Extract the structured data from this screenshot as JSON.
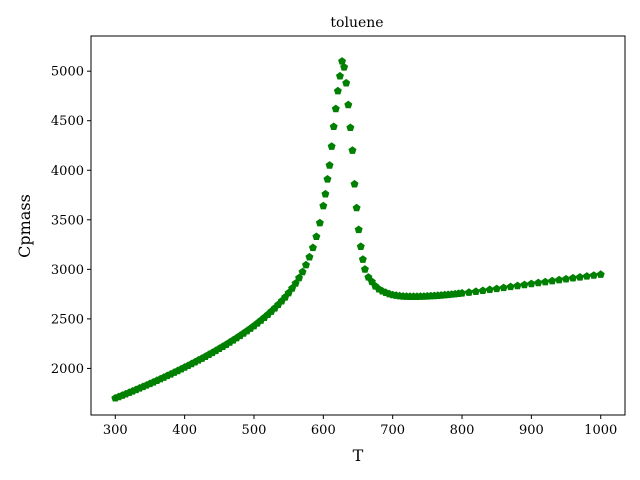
{
  "chart_data": {
    "type": "scatter",
    "title": "toluene",
    "xlabel": "T",
    "ylabel": "Cpmass",
    "xlim": [
      265,
      1035
    ],
    "ylim": [
      1530,
      5355
    ],
    "xticks": [
      300,
      400,
      500,
      600,
      700,
      800,
      900,
      1000
    ],
    "yticks": [
      2000,
      2500,
      3000,
      3500,
      4000,
      4500,
      5000
    ],
    "grid": false,
    "marker": "pentagon",
    "colors": {
      "marker": "#008000"
    },
    "series": [
      {
        "x": [
          300,
          305,
          310,
          315,
          320,
          325,
          330,
          335,
          340,
          345,
          350,
          355,
          360,
          365,
          370,
          375,
          380,
          385,
          390,
          395,
          400,
          405,
          410,
          415,
          420,
          425,
          430,
          435,
          440,
          445,
          450,
          455,
          460,
          465,
          470,
          475,
          480,
          485,
          490,
          495,
          500,
          505,
          510,
          515,
          520,
          525,
          530,
          535,
          540,
          545,
          550,
          555,
          560,
          565,
          570,
          575,
          580,
          585,
          590,
          595,
          600,
          603,
          606,
          609,
          612,
          615,
          618,
          621,
          624,
          627,
          630,
          633,
          636,
          639,
          642,
          645,
          648,
          651,
          654,
          657,
          660,
          665,
          670,
          675,
          680,
          685,
          690,
          695,
          700,
          705,
          710,
          715,
          720,
          725,
          730,
          735,
          740,
          745,
          750,
          755,
          760,
          765,
          770,
          775,
          780,
          785,
          790,
          795,
          800,
          810,
          820,
          830,
          840,
          850,
          860,
          870,
          880,
          890,
          900,
          910,
          920,
          930,
          940,
          950,
          960,
          970,
          980,
          990,
          1000
        ],
        "y": [
          1700,
          1713,
          1727,
          1741,
          1756,
          1770,
          1785,
          1800,
          1815,
          1830,
          1846,
          1861,
          1877,
          1893,
          1909,
          1926,
          1942,
          1959,
          1976,
          1993,
          2011,
          2028,
          2046,
          2064,
          2083,
          2101,
          2120,
          2140,
          2159,
          2179,
          2200,
          2220,
          2241,
          2263,
          2285,
          2307,
          2330,
          2354,
          2378,
          2403,
          2429,
          2456,
          2484,
          2513,
          2543,
          2575,
          2608,
          2643,
          2680,
          2719,
          2762,
          2808,
          2858,
          2913,
          2974,
          3044,
          3124,
          3218,
          3330,
          3468,
          3640,
          3760,
          3910,
          4050,
          4240,
          4440,
          4620,
          4800,
          4950,
          5100,
          5040,
          4880,
          4660,
          4430,
          4200,
          3860,
          3620,
          3400,
          3230,
          3100,
          3000,
          2920,
          2875,
          2830,
          2800,
          2780,
          2765,
          2752,
          2742,
          2736,
          2731,
          2728,
          2726,
          2725,
          2725,
          2725,
          2726,
          2727,
          2729,
          2731,
          2733,
          2735,
          2738,
          2741,
          2744,
          2747,
          2751,
          2755,
          2759,
          2767,
          2776,
          2785,
          2795,
          2804,
          2814,
          2824,
          2834,
          2844,
          2854,
          2864,
          2873,
          2883,
          2893,
          2902,
          2912,
          2921,
          2930,
          2939,
          2948
        ]
      }
    ]
  }
}
